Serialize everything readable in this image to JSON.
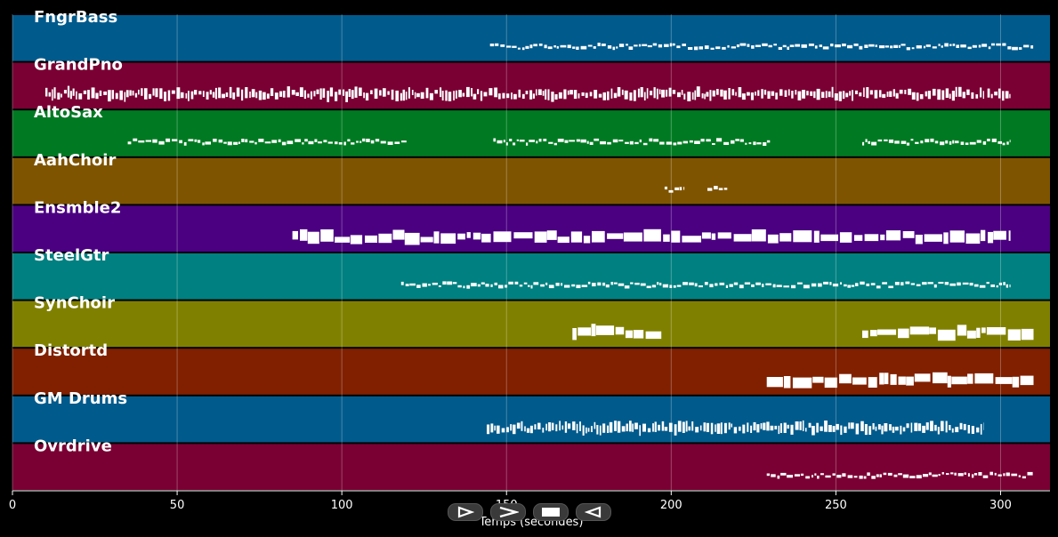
{
  "chart_data": {
    "type": "piano-roll",
    "xlabel": "Temps (secondes)",
    "xlim": [
      0,
      315
    ],
    "xticks": [
      0,
      50,
      100,
      150,
      200,
      250,
      300
    ],
    "tracks": [
      {
        "name": "FngrBass",
        "color": "#005a8c",
        "segments": [
          [
            145,
            310
          ]
        ],
        "style": "line"
      },
      {
        "name": "GrandPno",
        "color": "#7a0033",
        "segments": [
          [
            10,
            295
          ],
          [
            296,
            303
          ]
        ],
        "style": "dense"
      },
      {
        "name": "AltoSax",
        "color": "#007a22",
        "segments": [
          [
            35,
            120
          ],
          [
            146,
            230
          ],
          [
            258,
            303
          ]
        ],
        "style": "line"
      },
      {
        "name": "AahChoir",
        "color": "#7f5400",
        "segments": [
          [
            198,
            204
          ],
          [
            211,
            217
          ]
        ],
        "style": "line"
      },
      {
        "name": "Ensmble2",
        "color": "#4b0082",
        "segments": [
          [
            85,
            303
          ]
        ],
        "style": "blocks"
      },
      {
        "name": "SteelGtr",
        "color": "#008080",
        "segments": [
          [
            118,
            303
          ]
        ],
        "style": "line"
      },
      {
        "name": "SynChoir",
        "color": "#808000",
        "segments": [
          [
            170,
            197
          ],
          [
            258,
            310
          ]
        ],
        "style": "blocks"
      },
      {
        "name": "Distortd",
        "color": "#802000",
        "segments": [
          [
            229,
            310
          ]
        ],
        "style": "blocks"
      },
      {
        "name": "GM Drums",
        "color": "#005a8c",
        "segments": [
          [
            144,
            295
          ]
        ],
        "style": "dense"
      },
      {
        "name": "Ovrdrive",
        "color": "#7a0033",
        "segments": [
          [
            229,
            310
          ]
        ],
        "style": "line"
      }
    ]
  },
  "controls": {
    "play_icon": "play-outline-icon",
    "forward_icon": "fast-forward-icon",
    "stop_icon": "stop-icon",
    "back_icon": "rewind-icon"
  }
}
